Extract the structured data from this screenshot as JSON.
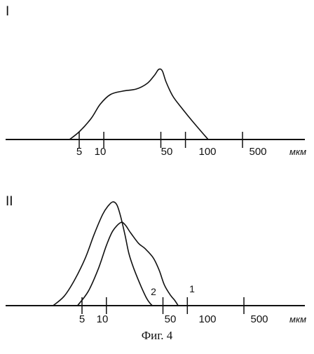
{
  "figure": {
    "caption": "Фиг. 4"
  },
  "chart_data": [
    {
      "type": "area",
      "panel_label": "I",
      "xscale": "log",
      "xlim": [
        3,
        1000
      ],
      "grid": false,
      "x_unit": "мкм",
      "x_ticks": [
        5,
        10,
        50,
        100,
        500
      ],
      "x_tick_labels": [
        "5",
        "10",
        "50",
        "100",
        "500"
      ],
      "series": [
        {
          "x": [
            3.8,
            5,
            7,
            9,
            12,
            17,
            25,
            34,
            42,
            47,
            52,
            58,
            70,
            90,
            120,
            160,
            190
          ],
          "y": [
            0,
            0.11,
            0.3,
            0.5,
            0.64,
            0.69,
            0.72,
            0.8,
            0.92,
            1.0,
            0.98,
            0.82,
            0.62,
            0.45,
            0.27,
            0.1,
            0
          ]
        }
      ]
    },
    {
      "type": "line",
      "panel_label": "II",
      "xscale": "log",
      "xlim": [
        1.5,
        1000
      ],
      "grid": false,
      "x_unit": "мкм",
      "x_ticks": [
        5,
        10,
        50,
        100,
        500
      ],
      "x_tick_labels": [
        "5",
        "10",
        "50",
        "100",
        "500"
      ],
      "series": [
        {
          "label": "2",
          "x": [
            2.2,
            3,
            4,
            5.5,
            7,
            9,
            10.5,
            12,
            13.5,
            15,
            17,
            19,
            22,
            27,
            31,
            34,
            37
          ],
          "y": [
            0,
            0.09,
            0.24,
            0.46,
            0.68,
            0.88,
            0.96,
            1.0,
            0.97,
            0.86,
            0.68,
            0.5,
            0.35,
            0.18,
            0.08,
            0.03,
            0
          ]
        },
        {
          "label": "1",
          "x": [
            4.4,
            6,
            8,
            10,
            12,
            15,
            17,
            20,
            25,
            30,
            38,
            45,
            52,
            62,
            70,
            77
          ],
          "y": [
            0,
            0.14,
            0.36,
            0.58,
            0.72,
            0.8,
            0.78,
            0.7,
            0.6,
            0.55,
            0.46,
            0.34,
            0.2,
            0.1,
            0.05,
            0
          ]
        }
      ]
    }
  ]
}
